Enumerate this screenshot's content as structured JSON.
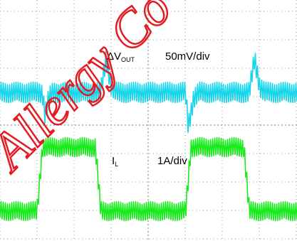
{
  "chart_data": [
    {
      "type": "line",
      "title": "",
      "series": [
        {
          "name": "ΔVOUT",
          "color": "#18d6ea",
          "points": [
            [
              0,
              0
            ],
            [
              0.8,
              0
            ],
            [
              0.85,
              -20
            ],
            [
              0.92,
              -5
            ],
            [
              1.0,
              0
            ],
            [
              1.9,
              0
            ],
            [
              2.0,
              30
            ],
            [
              2.1,
              5
            ],
            [
              2.2,
              0
            ],
            [
              3.5,
              0
            ],
            [
              3.55,
              -30
            ],
            [
              3.65,
              -5
            ],
            [
              3.75,
              0
            ],
            [
              4.7,
              0
            ],
            [
              4.8,
              30
            ],
            [
              4.9,
              5
            ],
            [
              5.0,
              0
            ],
            [
              5.5,
              0
            ]
          ],
          "ripple_pp": 18
        }
      ],
      "label_parts": [
        "ΔV",
        "OUT"
      ],
      "scale": "50mV/div",
      "xlim": [
        0,
        5.6
      ],
      "ylim": [
        -75,
        75
      ],
      "grid": true
    },
    {
      "type": "line",
      "title": "",
      "series": [
        {
          "name": "IL",
          "color": "#19ea1c",
          "points": [
            [
              0,
              0
            ],
            [
              0.7,
              0
            ],
            [
              0.8,
              1
            ],
            [
              1.8,
              1
            ],
            [
              1.9,
              0
            ],
            [
              3.5,
              0
            ],
            [
              3.6,
              1
            ],
            [
              4.6,
              1
            ],
            [
              4.7,
              0
            ],
            [
              5.5,
              0
            ]
          ],
          "ripple_pp": 0.3
        }
      ],
      "label_parts": [
        "I",
        "L"
      ],
      "scale": "1A/div",
      "xlim": [
        0,
        5.6
      ],
      "ylim": [
        -0.5,
        1.5
      ],
      "grid": true
    }
  ],
  "watermark": {
    "text": "Allergy Co",
    "color": "#e31b23"
  }
}
